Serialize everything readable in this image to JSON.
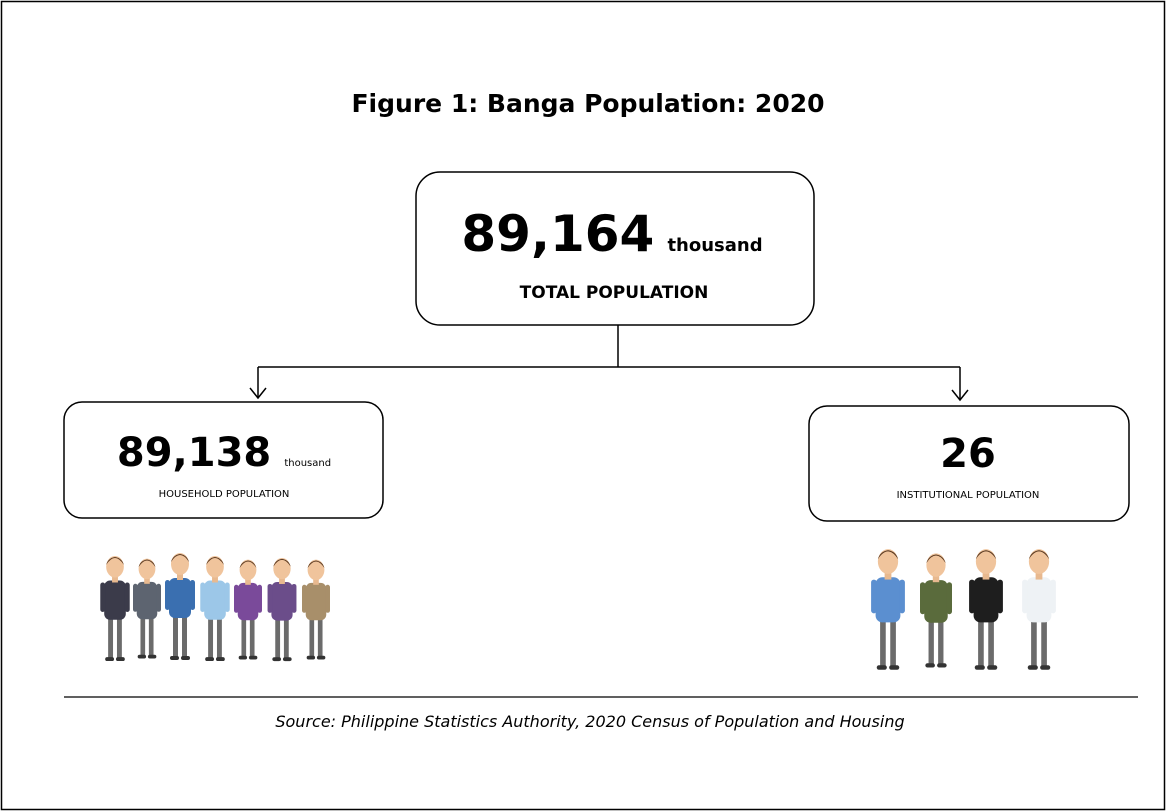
{
  "title": "Figure 1: Banga Population: 2020",
  "total": {
    "value": "89,164",
    "unit": "thousand",
    "label": "TOTAL POPULATION"
  },
  "household": {
    "value": "89,138",
    "unit": "thousand",
    "label": "HOUSEHOLD POPULATION"
  },
  "institutional": {
    "value": "26",
    "label": "INSTITUTIONAL POPULATION"
  },
  "source": "Source: Philippine Statistics Authority, 2020 Census of Population and Housing"
}
